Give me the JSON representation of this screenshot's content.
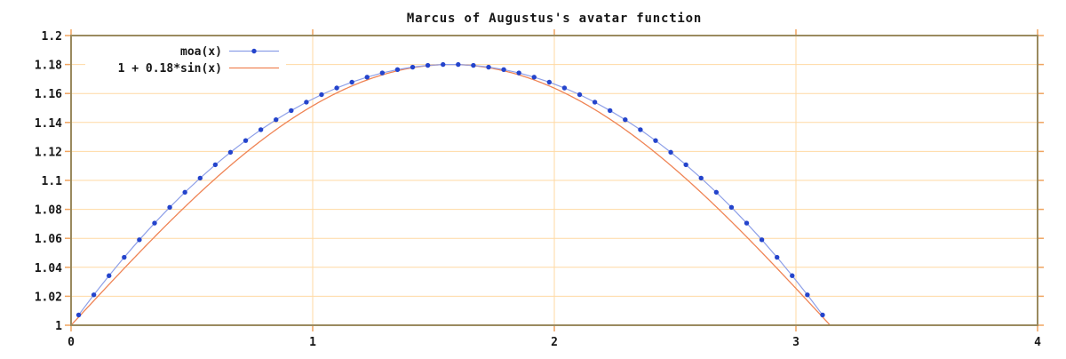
{
  "title": "Marcus of Augustus's avatar function",
  "colors": {
    "background": "#ffffff",
    "border": "#9a8a5f",
    "grid": "#ffd9a3",
    "tick": "#f0a45f",
    "text": "#161616",
    "moa_point": "#2444cc",
    "moa_line": "#8d9fe8",
    "sin_line": "#ef8455"
  },
  "legend": {
    "items": [
      {
        "label": "moa(x)"
      },
      {
        "label": "1 + 0.18*sin(x)"
      }
    ]
  },
  "chart_data": {
    "type": "line",
    "title": "Marcus of Augustus's avatar function",
    "xlabel": "",
    "ylabel": "",
    "xlim": [
      0,
      4
    ],
    "ylim": [
      1,
      1.2
    ],
    "x_tick_values": [
      0,
      1,
      2,
      3,
      4
    ],
    "x_tick_labels": [
      "0",
      "1",
      "2",
      "3",
      "4"
    ],
    "y_tick_values": [
      1,
      1.02,
      1.04,
      1.06,
      1.08,
      1.1,
      1.12,
      1.14,
      1.16,
      1.18,
      1.2
    ],
    "y_tick_labels": [
      "1",
      "1.02",
      "1.04",
      "1.06",
      "1.08",
      "1.1",
      "1.12",
      "1.14",
      "1.16",
      "1.18",
      "1.2"
    ],
    "grid": true,
    "legend_position": "top-left-inside",
    "series": [
      {
        "name": "moa(x)",
        "type": "linespoints",
        "point_color": "#2444cc",
        "line_color": "#8d9fe8",
        "x": [
          0.0314,
          0.0942,
          0.1571,
          0.2199,
          0.2827,
          0.3456,
          0.4084,
          0.4712,
          0.5341,
          0.5969,
          0.6597,
          0.7226,
          0.7854,
          0.8482,
          0.9111,
          0.9739,
          1.0367,
          1.0996,
          1.1624,
          1.2252,
          1.2881,
          1.3509,
          1.4137,
          1.4765,
          1.5394,
          1.6022,
          1.665,
          1.7279,
          1.7907,
          1.8535,
          1.9164,
          1.9792,
          2.042,
          2.1049,
          2.1677,
          2.2305,
          2.2934,
          2.3562,
          2.419,
          2.4819,
          2.5447,
          2.6075,
          2.6704,
          2.7332,
          2.796,
          2.8588,
          2.9217,
          2.9845,
          3.0473,
          3.1102
        ],
        "y": [
          1.0071,
          1.021,
          1.0342,
          1.0469,
          1.059,
          1.0705,
          1.0814,
          1.0918,
          1.1016,
          1.1108,
          1.1194,
          1.1275,
          1.135,
          1.1419,
          1.1482,
          1.154,
          1.1592,
          1.1638,
          1.1678,
          1.1713,
          1.1742,
          1.1765,
          1.1782,
          1.1794,
          1.18,
          1.18,
          1.1794,
          1.1782,
          1.1765,
          1.1742,
          1.1713,
          1.1678,
          1.1638,
          1.1592,
          1.154,
          1.1482,
          1.1419,
          1.135,
          1.1275,
          1.1194,
          1.1108,
          1.1016,
          1.0918,
          1.0814,
          1.0705,
          1.059,
          1.0469,
          1.0342,
          1.021,
          1.0071
        ]
      },
      {
        "name": "1 + 0.18*sin(x)",
        "type": "line",
        "line_color": "#ef8455",
        "formula": "1 + 0.18*sin(x)",
        "sample": {
          "offset": 1,
          "amplitude": 0.18,
          "from": 0,
          "to": 4,
          "step": 0.005
        }
      }
    ]
  }
}
